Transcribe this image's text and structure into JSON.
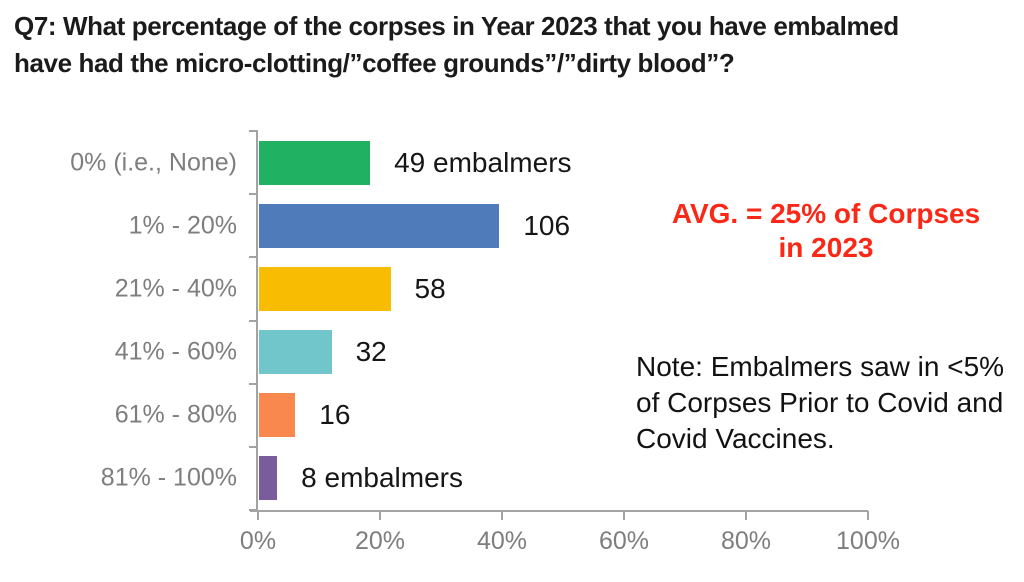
{
  "title": {
    "lines": [
      "Q7: What percentage of the corpses in Year 2023 that you have embalmed",
      "have had the micro-clotting/”coffee grounds”/”dirty blood”?"
    ]
  },
  "chart_data": {
    "type": "bar",
    "orientation": "horizontal",
    "title": "Q7: What percentage of the corpses in Year 2023 that you have embalmed have had the micro-clotting/”coffee grounds”/”dirty blood”?",
    "categories": [
      "0% (i.e., None)",
      "1% - 20%",
      "21% - 40%",
      "41% - 60%",
      "61% - 80%",
      "81% - 100%"
    ],
    "values": [
      49,
      106,
      58,
      32,
      16,
      8
    ],
    "value_labels": [
      "49 embalmers",
      "106",
      "58",
      "32",
      "16",
      "8 embalmers"
    ],
    "bar_colors": [
      "#21b163",
      "#4f7bba",
      "#f8bc02",
      "#71c6cc",
      "#f8884e",
      "#7a5b9b"
    ],
    "x_ticks": [
      "0%",
      "20%",
      "40%",
      "60%",
      "80%",
      "100%"
    ],
    "xlim": [
      0,
      100
    ],
    "xlabel": "",
    "ylabel": "",
    "grid": false,
    "legend": false
  },
  "annotations": {
    "avg": {
      "lines": [
        "AVG. = 25% of Corpses",
        "in 2023"
      ],
      "color": "#fb2817"
    },
    "note": {
      "lines": [
        "Note:  Embalmers saw in <5%",
        "of Corpses Prior to Covid and",
        "Covid Vaccines."
      ]
    }
  },
  "colors": {
    "axis": "#a3a3a3",
    "tick_label": "#7e7e7e",
    "category_label": "#7e7e7e",
    "value_label": "#161616",
    "title": "#1b1b1b",
    "background": "#ffffff"
  }
}
